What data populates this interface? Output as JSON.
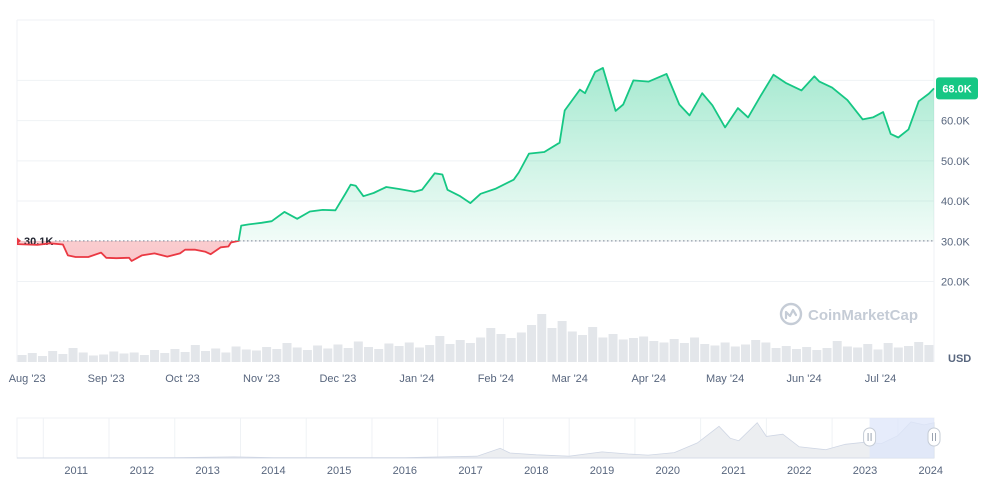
{
  "chart_data": {
    "type": "area",
    "currency_label": "USD",
    "watermark": "CoinMarketCap",
    "baseline": {
      "value": 30100,
      "label": "30.1K"
    },
    "current": {
      "value": 68000,
      "label": "68.0K"
    },
    "y_axis": {
      "min": 0,
      "max": 85000,
      "ticks": [
        {
          "value": 20000,
          "label": "20.0K"
        },
        {
          "value": 30000,
          "label": "30.0K"
        },
        {
          "value": 40000,
          "label": "40.0K"
        },
        {
          "value": 50000,
          "label": "50.0K"
        },
        {
          "value": 60000,
          "label": "60.0K"
        }
      ]
    },
    "x_axis": {
      "start": "2023-07-28",
      "end": "2024-07-22",
      "ticks": [
        {
          "date": "2023-08-01",
          "label": "Aug '23"
        },
        {
          "date": "2023-09-01",
          "label": "Sep '23"
        },
        {
          "date": "2023-10-01",
          "label": "Oct '23"
        },
        {
          "date": "2023-11-01",
          "label": "Nov '23"
        },
        {
          "date": "2023-12-01",
          "label": "Dec '23"
        },
        {
          "date": "2024-01-01",
          "label": "Jan '24"
        },
        {
          "date": "2024-02-01",
          "label": "Feb '24"
        },
        {
          "date": "2024-03-01",
          "label": "Mar '24"
        },
        {
          "date": "2024-04-01",
          "label": "Apr '24"
        },
        {
          "date": "2024-05-01",
          "label": "May '24"
        },
        {
          "date": "2024-06-01",
          "label": "Jun '24"
        },
        {
          "date": "2024-07-01",
          "label": "Jul '24"
        }
      ]
    },
    "series": [
      {
        "points": [
          [
            "2023-07-28",
            29300
          ],
          [
            "2023-08-05",
            29100
          ],
          [
            "2023-08-10",
            29500
          ],
          [
            "2023-08-15",
            29200
          ],
          [
            "2023-08-17",
            26500
          ],
          [
            "2023-08-20",
            26100
          ],
          [
            "2023-08-25",
            26100
          ],
          [
            "2023-08-30",
            27200
          ],
          [
            "2023-09-01",
            25900
          ],
          [
            "2023-09-05",
            25800
          ],
          [
            "2023-09-10",
            25900
          ],
          [
            "2023-09-11",
            25100
          ],
          [
            "2023-09-15",
            26500
          ],
          [
            "2023-09-20",
            27000
          ],
          [
            "2023-09-25",
            26200
          ],
          [
            "2023-09-30",
            27000
          ],
          [
            "2023-10-02",
            27900
          ],
          [
            "2023-10-06",
            27900
          ],
          [
            "2023-10-10",
            27400
          ],
          [
            "2023-10-12",
            26800
          ],
          [
            "2023-10-16",
            28500
          ],
          [
            "2023-10-19",
            28700
          ],
          [
            "2023-10-20",
            29700
          ],
          [
            "2023-10-23",
            30100
          ],
          [
            "2023-10-24",
            33900
          ],
          [
            "2023-10-27",
            34200
          ],
          [
            "2023-11-01",
            34600
          ],
          [
            "2023-11-05",
            35000
          ],
          [
            "2023-11-10",
            37300
          ],
          [
            "2023-11-15",
            35600
          ],
          [
            "2023-11-20",
            37400
          ],
          [
            "2023-11-25",
            37800
          ],
          [
            "2023-11-30",
            37700
          ],
          [
            "2023-12-04",
            41900
          ],
          [
            "2023-12-06",
            44100
          ],
          [
            "2023-12-08",
            43800
          ],
          [
            "2023-12-11",
            41200
          ],
          [
            "2023-12-15",
            42000
          ],
          [
            "2023-12-20",
            43500
          ],
          [
            "2023-12-25",
            43000
          ],
          [
            "2023-12-31",
            42300
          ],
          [
            "2024-01-03",
            42800
          ],
          [
            "2024-01-08",
            46900
          ],
          [
            "2024-01-11",
            46600
          ],
          [
            "2024-01-13",
            42800
          ],
          [
            "2024-01-18",
            41200
          ],
          [
            "2024-01-22",
            39500
          ],
          [
            "2024-01-26",
            41800
          ],
          [
            "2024-02-01",
            43100
          ],
          [
            "2024-02-08",
            45300
          ],
          [
            "2024-02-10",
            47100
          ],
          [
            "2024-02-14",
            51800
          ],
          [
            "2024-02-20",
            52200
          ],
          [
            "2024-02-26",
            54500
          ],
          [
            "2024-02-28",
            62500
          ],
          [
            "2024-03-05",
            67700
          ],
          [
            "2024-03-07",
            66800
          ],
          [
            "2024-03-11",
            72100
          ],
          [
            "2024-03-14",
            73100
          ],
          [
            "2024-03-19",
            62400
          ],
          [
            "2024-03-22",
            64000
          ],
          [
            "2024-03-26",
            70000
          ],
          [
            "2024-04-01",
            69700
          ],
          [
            "2024-04-08",
            71600
          ],
          [
            "2024-04-13",
            64000
          ],
          [
            "2024-04-17",
            61300
          ],
          [
            "2024-04-22",
            66800
          ],
          [
            "2024-04-26",
            63800
          ],
          [
            "2024-05-01",
            58300
          ],
          [
            "2024-05-06",
            63100
          ],
          [
            "2024-05-10",
            60800
          ],
          [
            "2024-05-15",
            66200
          ],
          [
            "2024-05-20",
            71400
          ],
          [
            "2024-05-25",
            69300
          ],
          [
            "2024-05-31",
            67500
          ],
          [
            "2024-06-05",
            71000
          ],
          [
            "2024-06-07",
            69700
          ],
          [
            "2024-06-12",
            68200
          ],
          [
            "2024-06-18",
            65100
          ],
          [
            "2024-06-24",
            60300
          ],
          [
            "2024-06-28",
            60800
          ],
          [
            "2024-07-02",
            62100
          ],
          [
            "2024-07-05",
            56700
          ],
          [
            "2024-07-08",
            55800
          ],
          [
            "2024-07-12",
            57800
          ],
          [
            "2024-07-16",
            64800
          ],
          [
            "2024-07-20",
            66700
          ],
          [
            "2024-07-22",
            68000
          ]
        ]
      }
    ],
    "volume": [
      1.4,
      1.8,
      1.2,
      2.2,
      1.6,
      2.8,
      1.9,
      1.3,
      1.5,
      2.1,
      1.7,
      1.9,
      1.4,
      2.4,
      1.8,
      2.6,
      2.0,
      3.4,
      2.2,
      2.7,
      1.9,
      3.1,
      2.5,
      2.3,
      3.0,
      2.6,
      3.8,
      2.9,
      2.4,
      3.3,
      2.7,
      3.5,
      2.8,
      4.1,
      3.0,
      2.6,
      3.7,
      3.2,
      3.9,
      2.9,
      3.4,
      5.2,
      3.6,
      4.4,
      3.8,
      4.9,
      6.8,
      5.6,
      4.8,
      5.9,
      7.4,
      9.6,
      6.8,
      8.2,
      6.1,
      5.4,
      7.0,
      4.9,
      5.6,
      4.5,
      4.8,
      5.1,
      4.2,
      3.9,
      4.6,
      3.8,
      4.9,
      3.6,
      3.3,
      3.9,
      3.1,
      3.5,
      4.4,
      3.9,
      2.8,
      3.2,
      2.6,
      3.0,
      2.4,
      2.8,
      4.2,
      3.1,
      2.9,
      3.6,
      2.5,
      3.8,
      2.9,
      3.2,
      4.0,
      3.4
    ],
    "navigator": {
      "ticks": [
        {
          "year": 2011,
          "label": "2011"
        },
        {
          "year": 2012,
          "label": "2012"
        },
        {
          "year": 2013,
          "label": "2013"
        },
        {
          "year": 2014,
          "label": "2014"
        },
        {
          "year": 2015,
          "label": "2015"
        },
        {
          "year": 2016,
          "label": "2016"
        },
        {
          "year": 2017,
          "label": "2017"
        },
        {
          "year": 2018,
          "label": "2018"
        },
        {
          "year": 2019,
          "label": "2019"
        },
        {
          "year": 2020,
          "label": "2020"
        },
        {
          "year": 2021,
          "label": "2021"
        },
        {
          "year": 2022,
          "label": "2022"
        },
        {
          "year": 2023,
          "label": "2023"
        },
        {
          "year": 2024,
          "label": "2024"
        }
      ],
      "range": {
        "start": 2010.6,
        "end": 2024.55
      },
      "selection": {
        "start": 2023.57,
        "end": 2024.55
      },
      "history": [
        [
          2010.6,
          0.0
        ],
        [
          2013.0,
          0.01
        ],
        [
          2013.9,
          0.03
        ],
        [
          2014.5,
          0.01
        ],
        [
          2016.5,
          0.01
        ],
        [
          2017.6,
          0.05
        ],
        [
          2017.95,
          0.27
        ],
        [
          2018.1,
          0.14
        ],
        [
          2018.5,
          0.09
        ],
        [
          2019.0,
          0.05
        ],
        [
          2019.5,
          0.17
        ],
        [
          2019.9,
          0.11
        ],
        [
          2020.2,
          0.08
        ],
        [
          2020.6,
          0.15
        ],
        [
          2020.95,
          0.42
        ],
        [
          2021.28,
          0.88
        ],
        [
          2021.45,
          0.55
        ],
        [
          2021.58,
          0.48
        ],
        [
          2021.86,
          0.98
        ],
        [
          2022.0,
          0.6
        ],
        [
          2022.25,
          0.66
        ],
        [
          2022.5,
          0.31
        ],
        [
          2022.9,
          0.23
        ],
        [
          2023.2,
          0.38
        ],
        [
          2023.5,
          0.44
        ],
        [
          2023.75,
          0.4
        ],
        [
          2024.0,
          0.62
        ],
        [
          2024.2,
          1.0
        ],
        [
          2024.4,
          0.92
        ],
        [
          2024.55,
          0.98
        ]
      ]
    },
    "colors": {
      "up": "#16c784",
      "down": "#ea3943",
      "badge": "#16c784",
      "badge_text": "#ffffff",
      "grid": "#eff2f5",
      "text": "#58667e",
      "volume": "#e3e6ea",
      "nav_fill": "#eceef1",
      "nav_sel": "#dee6f9"
    }
  }
}
